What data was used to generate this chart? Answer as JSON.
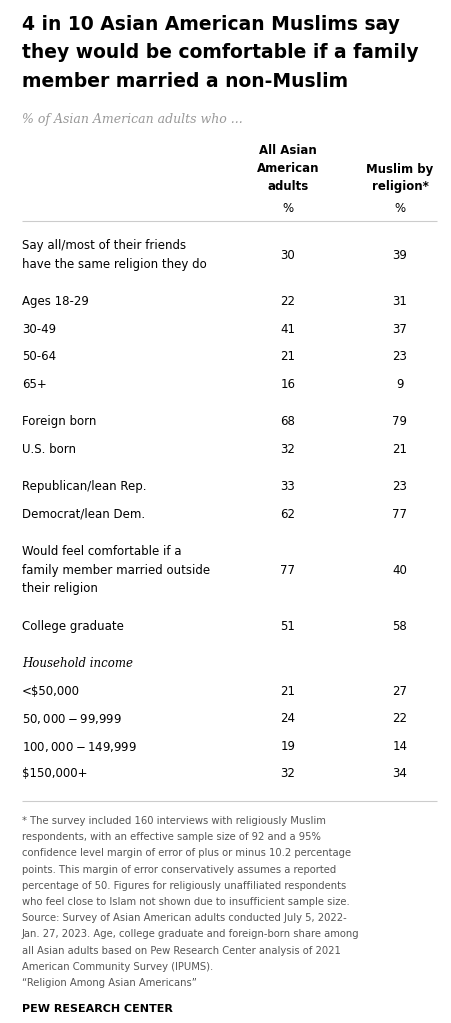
{
  "title_lines": [
    "4 in 10 Asian American Muslims say",
    "they would be comfortable if a family",
    "member married a non-Muslim"
  ],
  "subtitle": "% of Asian American adults who ...",
  "col1_header_lines": [
    "All Asian",
    "American",
    "adults"
  ],
  "col2_header_lines": [
    "Muslim by",
    "religion*"
  ],
  "col_unit": "%",
  "rows": [
    {
      "label": "Say all/most of their friends\nhave the same religion they do",
      "val1": "30",
      "val2": "39",
      "italic": false,
      "spacer_before": false
    },
    {
      "label": "Ages 18-29",
      "val1": "22",
      "val2": "31",
      "italic": false,
      "spacer_before": true
    },
    {
      "label": "30-49",
      "val1": "41",
      "val2": "37",
      "italic": false,
      "spacer_before": false
    },
    {
      "label": "50-64",
      "val1": "21",
      "val2": "23",
      "italic": false,
      "spacer_before": false
    },
    {
      "label": "65+",
      "val1": "16",
      "val2": "9",
      "italic": false,
      "spacer_before": false
    },
    {
      "label": "Foreign born",
      "val1": "68",
      "val2": "79",
      "italic": false,
      "spacer_before": true
    },
    {
      "label": "U.S. born",
      "val1": "32",
      "val2": "21",
      "italic": false,
      "spacer_before": false
    },
    {
      "label": "Republican/lean Rep.",
      "val1": "33",
      "val2": "23",
      "italic": false,
      "spacer_before": true
    },
    {
      "label": "Democrat/lean Dem.",
      "val1": "62",
      "val2": "77",
      "italic": false,
      "spacer_before": false
    },
    {
      "label": "Would feel comfortable if a\nfamily member married outside\ntheir religion",
      "val1": "77",
      "val2": "40",
      "italic": false,
      "spacer_before": true
    },
    {
      "label": "College graduate",
      "val1": "51",
      "val2": "58",
      "italic": false,
      "spacer_before": true
    },
    {
      "label": "Household income",
      "val1": "",
      "val2": "",
      "italic": true,
      "spacer_before": true
    },
    {
      "label": "<$50,000",
      "val1": "21",
      "val2": "27",
      "italic": false,
      "spacer_before": false
    },
    {
      "label": "$50,000-$99,999",
      "val1": "24",
      "val2": "22",
      "italic": false,
      "spacer_before": false
    },
    {
      "label": "$100,000-$149,999",
      "val1": "19",
      "val2": "14",
      "italic": false,
      "spacer_before": false
    },
    {
      "label": "$150,000+",
      "val1": "32",
      "val2": "34",
      "italic": false,
      "spacer_before": false
    }
  ],
  "footnote_lines": [
    "* The survey included 160 interviews with religiously Muslim",
    "respondents, with an effective sample size of 92 and a 95%",
    "confidence level margin of error of plus or minus 10.2 percentage",
    "points. This margin of error conservatively assumes a reported",
    "percentage of 50. Figures for religiously unaffiliated respondents",
    "who feel close to Islam not shown due to insufficient sample size.",
    "Source: Survey of Asian American adults conducted July 5, 2022-",
    "Jan. 27, 2023. Age, college graduate and foreign-born share among",
    "all Asian adults based on Pew Research Center analysis of 2021",
    "American Community Survey (IPUMS).",
    "“Religion Among Asian Americans”"
  ],
  "source_bold": "PEW RESEARCH CENTER",
  "bg_color": "#ffffff",
  "text_color": "#000000",
  "footnote_color": "#555555",
  "title_color": "#000000",
  "subtitle_color": "#999999",
  "divider_color": "#cccccc"
}
